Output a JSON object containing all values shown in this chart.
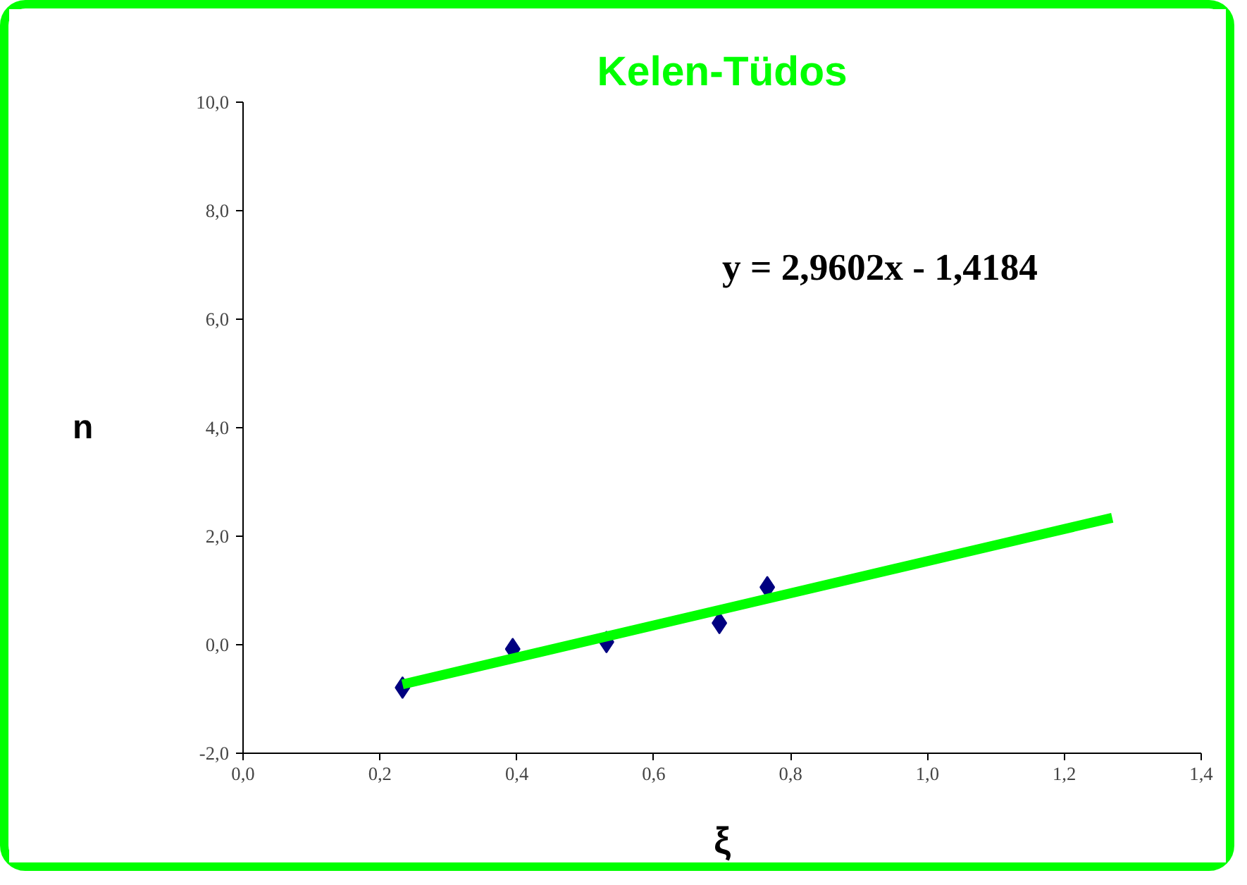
{
  "chart_data": {
    "type": "scatter",
    "title": "Kelen-Tüdos",
    "xlabel": "ξ",
    "ylabel": "n",
    "annotations": [
      "y = 2,9602x - 1,4184"
    ],
    "grid": false,
    "xlim": [
      0.0,
      1.4
    ],
    "ylim": [
      -2.0,
      10.0
    ],
    "xticks": [
      {
        "value": 0.0,
        "label": "0,0"
      },
      {
        "value": 0.2,
        "label": "0,2"
      },
      {
        "value": 0.4,
        "label": "0,4"
      },
      {
        "value": 0.6,
        "label": "0,6"
      },
      {
        "value": 0.8,
        "label": "0,8"
      },
      {
        "value": 1.0,
        "label": "1,0"
      },
      {
        "value": 1.2,
        "label": "1,2"
      },
      {
        "value": 1.4,
        "label": "1,4"
      }
    ],
    "yticks": [
      {
        "value": -2.0,
        "label": "-2,0"
      },
      {
        "value": 0.0,
        "label": "0,0"
      },
      {
        "value": 2.0,
        "label": "2,0"
      },
      {
        "value": 4.0,
        "label": "4,0"
      },
      {
        "value": 6.0,
        "label": "6,0"
      },
      {
        "value": 8.0,
        "label": "8,0"
      },
      {
        "value": 10.0,
        "label": "10,0"
      }
    ],
    "series": [
      {
        "marker": "diamond",
        "color": "#000080",
        "x": [
          0.233,
          0.394,
          0.531,
          0.696,
          0.766
        ],
        "values": [
          -0.79,
          -0.08,
          0.05,
          0.4,
          1.06
        ]
      },
      {
        "type": "line",
        "color": "#00ff00",
        "x": [
          0.233,
          1.27
        ],
        "values": [
          -0.73,
          2.34
        ]
      }
    ]
  }
}
